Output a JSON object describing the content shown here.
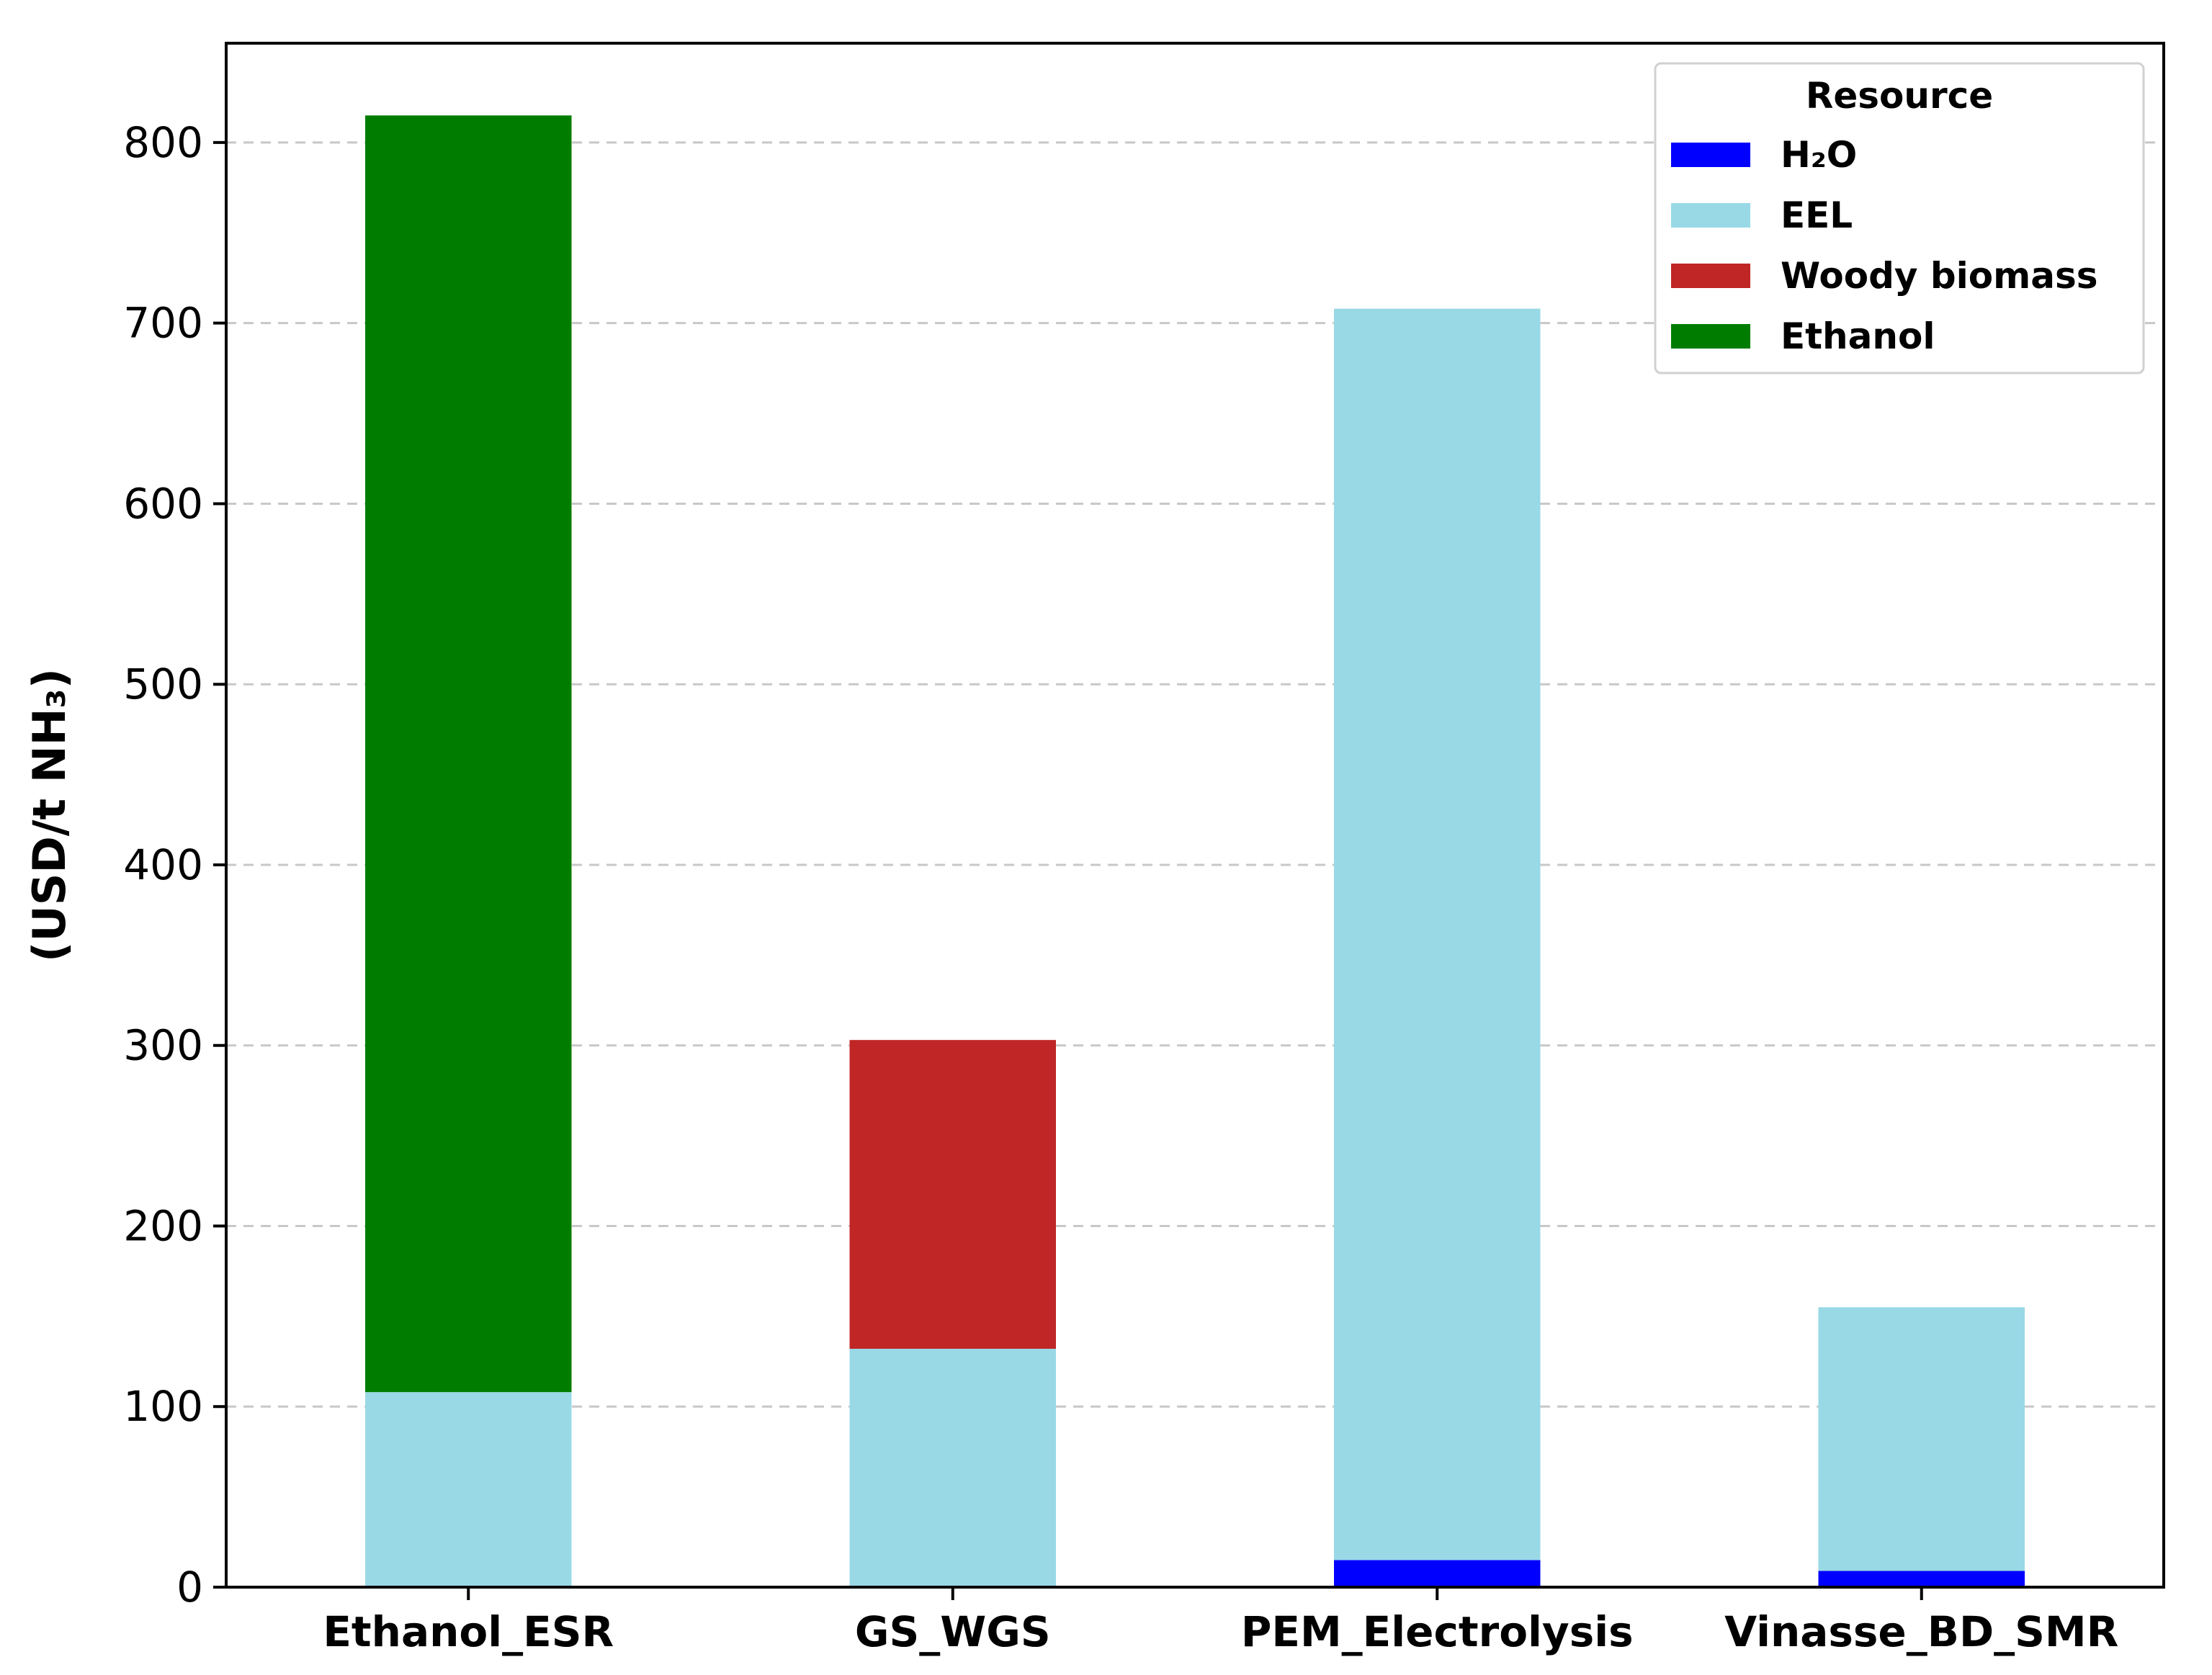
{
  "chart_data": {
    "type": "bar",
    "stacked": true,
    "categories": [
      "Ethanol_ESR",
      "GS_WGS",
      "PEM_Electrolysis",
      "Vinasse_BD_SMR"
    ],
    "series": [
      {
        "name": "H₂O",
        "color": "#0000ff",
        "values": [
          0,
          0,
          15,
          9
        ]
      },
      {
        "name": "EEL",
        "color": "#99d9e6",
        "values": [
          108,
          132,
          693,
          146
        ]
      },
      {
        "name": "Woody biomass",
        "color": "#c02626",
        "values": [
          0,
          171,
          0,
          0
        ]
      },
      {
        "name": "Ethanol",
        "color": "#007d00",
        "values": [
          707,
          0,
          0,
          0
        ]
      }
    ],
    "title": "",
    "xlabel": "",
    "ylabel": "(USD/t NH₃)",
    "ylim": [
      0,
      855
    ],
    "yticks": [
      0,
      100,
      200,
      300,
      400,
      500,
      600,
      700,
      800
    ],
    "grid": "y-dashed",
    "legend": {
      "title": "Resource",
      "placement": "top-right"
    }
  }
}
